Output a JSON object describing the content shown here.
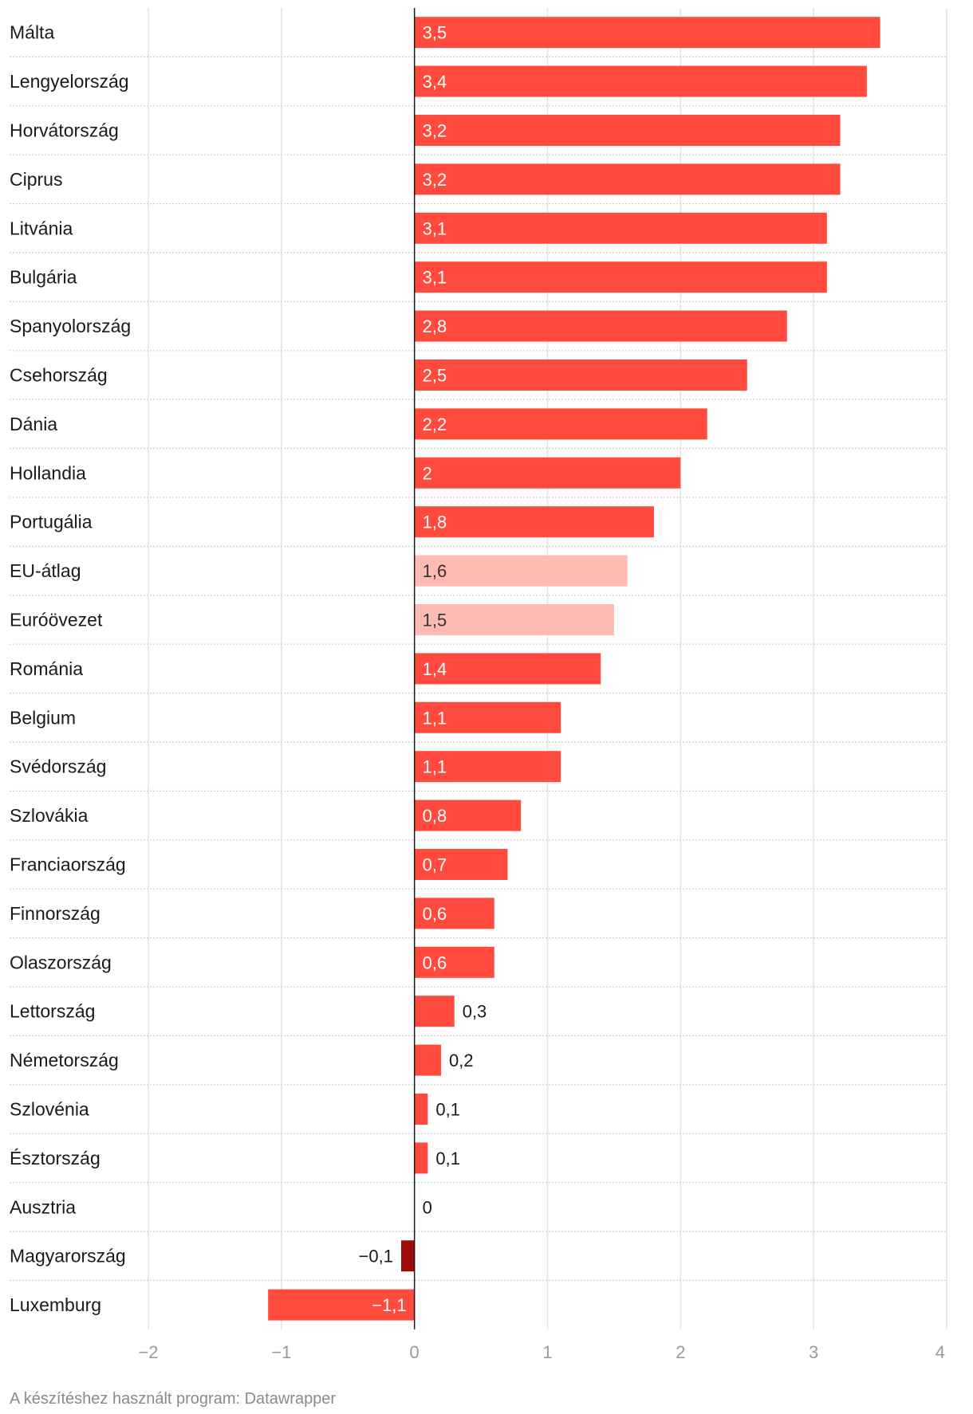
{
  "chart_data": {
    "type": "bar",
    "orientation": "horizontal",
    "categories": [
      "Málta",
      "Lengyelország",
      "Horvátország",
      "Ciprus",
      "Litvánia",
      "Bulgária",
      "Spanyolország",
      "Csehország",
      "Dánia",
      "Hollandia",
      "Portugália",
      "EU-átlag",
      "Euróövezet",
      "Románia",
      "Belgium",
      "Svédország",
      "Szlovákia",
      "Franciaország",
      "Finnország",
      "Olaszország",
      "Lettország",
      "Németország",
      "Szlovénia",
      "Észtország",
      "Ausztria",
      "Magyarország",
      "Luxemburg"
    ],
    "values": [
      3.5,
      3.4,
      3.2,
      3.2,
      3.1,
      3.1,
      2.8,
      2.5,
      2.2,
      2,
      1.8,
      1.6,
      1.5,
      1.4,
      1.1,
      1.1,
      0.8,
      0.7,
      0.6,
      0.6,
      0.3,
      0.2,
      0.1,
      0.1,
      0,
      -0.1,
      -1.1
    ],
    "value_labels": [
      "3,5",
      "3,4",
      "3,2",
      "3,2",
      "3,1",
      "3,1",
      "2,8",
      "2,5",
      "2,2",
      "2",
      "1,8",
      "1,6",
      "1,5",
      "1,4",
      "1,1",
      "1,1",
      "0,8",
      "0,7",
      "0,6",
      "0,6",
      "0,3",
      "0,2",
      "0,1",
      "0,1",
      "0",
      "−0,1",
      "−1,1"
    ],
    "highlight": [
      "normal",
      "normal",
      "normal",
      "normal",
      "normal",
      "normal",
      "normal",
      "normal",
      "normal",
      "normal",
      "normal",
      "average",
      "average",
      "normal",
      "normal",
      "normal",
      "normal",
      "normal",
      "normal",
      "normal",
      "normal",
      "normal",
      "normal",
      "normal",
      "normal",
      "hungary",
      "normal"
    ],
    "xlim": [
      -2,
      4
    ],
    "xticks": [
      -2,
      -1,
      0,
      1,
      2,
      3,
      4
    ],
    "xtick_labels": [
      "−2",
      "−1",
      "0",
      "1",
      "2",
      "3",
      "4"
    ],
    "title": "",
    "xlabel": "",
    "ylabel": "",
    "grid": true,
    "colors": {
      "normal": "#ff4a3d",
      "average": "#ffbab4",
      "hungary": "#9e0b0b"
    }
  },
  "footer": {
    "credit": "A készítéshez használt program: Datawrapper"
  }
}
